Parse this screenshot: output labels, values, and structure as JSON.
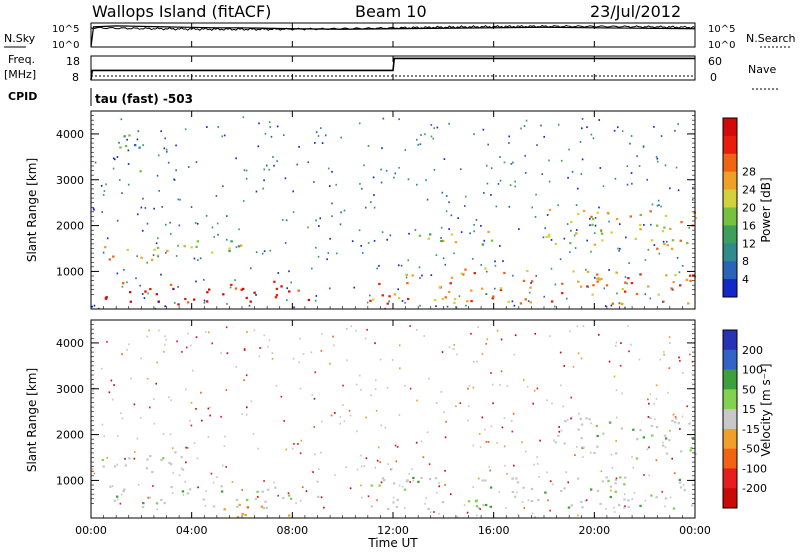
{
  "header": {
    "station": "Wallops Island (fitACF)",
    "beam": "Beam 10",
    "date": "23/Jul/2012"
  },
  "top_panels": {
    "nsky_label": "N.Sky",
    "nsearch_label": "N.Search",
    "nsky_ticks": [
      "10^5",
      "10^0"
    ],
    "nsearch_ticks": [
      "10^5",
      "10^0"
    ],
    "freq_label": "Freq.",
    "freq_unit": "[MHz]",
    "freq_ticks": [
      "18",
      "8"
    ],
    "nave_label": "Nave",
    "nave_ticks": [
      "60",
      "0"
    ],
    "cpid_label": "CPID",
    "cpid_text": "tau (fast) -503"
  },
  "chart_data": [
    {
      "type": "line",
      "name": "noise",
      "x_range_hours": [
        0,
        24
      ],
      "series": [
        {
          "name": "N.Sky",
          "x": [
            0,
            0.1,
            1,
            2,
            3,
            4,
            5,
            6,
            8,
            10,
            12,
            14,
            16,
            18,
            20,
            22,
            24
          ],
          "y_log10": [
            0,
            4.2,
            4.4,
            4.3,
            4.2,
            4.1,
            4.0,
            4.0,
            3.8,
            3.7,
            3.8,
            3.9,
            4.0,
            4.1,
            4.0,
            3.9,
            3.8
          ]
        }
      ]
    },
    {
      "type": "line",
      "name": "frequency_nave",
      "x_range_hours": [
        0,
        24
      ],
      "series": [
        {
          "name": "Freq. [MHz]",
          "x": [
            0,
            0.05,
            12,
            12.05,
            24
          ],
          "y": [
            8,
            12,
            12,
            17,
            17
          ]
        },
        {
          "name": "Nave",
          "x": [
            0,
            24
          ],
          "y": [
            5,
            5
          ]
        }
      ]
    },
    {
      "type": "heatmap",
      "title": "",
      "xlabel": "",
      "ylabel": "Slant Range [km]",
      "x_ticks": [
        "00:00",
        "04:00",
        "08:00",
        "12:00",
        "16:00",
        "20:00",
        "00:00"
      ],
      "y_ticks": [
        "1000",
        "2000",
        "3000",
        "4000"
      ],
      "xlim_hours": [
        0,
        24
      ],
      "ylim_km": [
        180,
        4500
      ],
      "colorbar": {
        "label": "Power [dB]",
        "ticks": [
          "4",
          "8",
          "12",
          "16",
          "20",
          "24",
          "28"
        ],
        "colors": [
          "#1428c8",
          "#2a64b8",
          "#2f8c8c",
          "#3ca05a",
          "#78c040",
          "#d2d23c",
          "#f0a028",
          "#f06414",
          "#e61e0a",
          "#d20a0a"
        ]
      },
      "bands": [
        {
          "t": [
            0,
            3
          ],
          "r": [
            1200,
            1600
          ],
          "dB": 18
        },
        {
          "t": [
            3,
            6
          ],
          "r": [
            1400,
            1800
          ],
          "dB": 14
        },
        {
          "t": [
            0.5,
            9
          ],
          "r": [
            300,
            800
          ],
          "dB": 26
        },
        {
          "t": [
            11,
            24
          ],
          "r": [
            300,
            1100
          ],
          "dB": 20
        },
        {
          "t": [
            13,
            16
          ],
          "r": [
            1500,
            1900
          ],
          "dB": 16
        },
        {
          "t": [
            18,
            24
          ],
          "r": [
            1500,
            2400
          ],
          "dB": 18
        },
        {
          "t": [
            1,
            2
          ],
          "r": [
            3200,
            4000
          ],
          "dB": 8
        }
      ]
    },
    {
      "type": "heatmap",
      "title": "",
      "xlabel": "Time UT",
      "ylabel": "Slant Range [km]",
      "x_ticks": [
        "00:00",
        "04:00",
        "08:00",
        "12:00",
        "16:00",
        "20:00",
        "00:00"
      ],
      "y_ticks": [
        "1000",
        "2000",
        "3000",
        "4000"
      ],
      "xlim_hours": [
        0,
        24
      ],
      "ylim_km": [
        180,
        4500
      ],
      "colorbar": {
        "label": "Velocity [m s^-1]",
        "ticks": [
          "200",
          "100",
          "50",
          "15",
          "-15",
          "-50",
          "-100",
          "-200"
        ],
        "colors": [
          "#2832b4",
          "#3264c8",
          "#3ca03c",
          "#82d250",
          "#c8c8c8",
          "#f0a028",
          "#f06414",
          "#e61e1e",
          "#c80a0a"
        ]
      },
      "bands": [
        {
          "t": [
            0,
            4
          ],
          "r": [
            1200,
            1700
          ],
          "v": 0
        },
        {
          "t": [
            0.5,
            9
          ],
          "r": [
            400,
            900
          ],
          "v": -5
        },
        {
          "t": [
            11,
            24
          ],
          "r": [
            400,
            1100
          ],
          "v": 0
        },
        {
          "t": [
            18,
            24
          ],
          "r": [
            1500,
            2400
          ],
          "v": 0
        },
        {
          "t": [
            5,
            8
          ],
          "r": [
            200,
            500
          ],
          "v": -60
        }
      ]
    }
  ]
}
